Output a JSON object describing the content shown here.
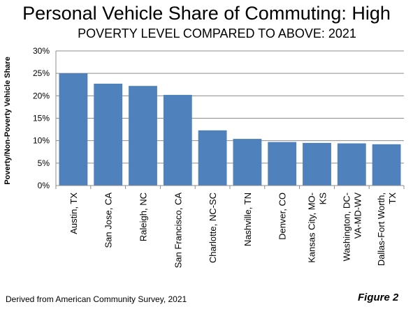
{
  "title": "Personal Vehicle Share of Commuting: High",
  "subtitle": "POVERTY LEVEL COMPARED TO ABOVE: 2021",
  "source_note": "Derived from American Community Survey, 2021",
  "figure_label": "Figure 2",
  "colors": {
    "bar": "#4f81bd",
    "grid": "#8c8c8c",
    "axis": "#8c8c8c"
  },
  "chart_data": {
    "type": "bar",
    "title": "Personal Vehicle Share of Commuting: High",
    "subtitle": "POVERTY LEVEL COMPARED TO ABOVE: 2021",
    "ylabel": "Poverty/Non-Poverty Vehicle Share",
    "xlabel": "",
    "ylim": [
      0,
      30
    ],
    "yticks": [
      0,
      5,
      10,
      15,
      20,
      25,
      30
    ],
    "ytick_labels": [
      "0%",
      "5%",
      "10%",
      "15%",
      "20%",
      "25%",
      "30%"
    ],
    "grid": true,
    "categories": [
      [
        "Austin, TX"
      ],
      [
        "San Jose, CA"
      ],
      [
        "Raleigh, NC"
      ],
      [
        "San Francisco, CA"
      ],
      [
        "Charlotte, NC-SC"
      ],
      [
        "Nashville, TN"
      ],
      [
        "Denver, CO"
      ],
      [
        "Kansas City, MO-",
        "KS"
      ],
      [
        "Washington, DC-",
        "VA-MD-WV"
      ],
      [
        "Dallas-Fort Worth,",
        "TX"
      ]
    ],
    "values": [
      25.0,
      22.7,
      22.2,
      20.2,
      12.3,
      10.4,
      9.7,
      9.5,
      9.4,
      9.2
    ]
  }
}
